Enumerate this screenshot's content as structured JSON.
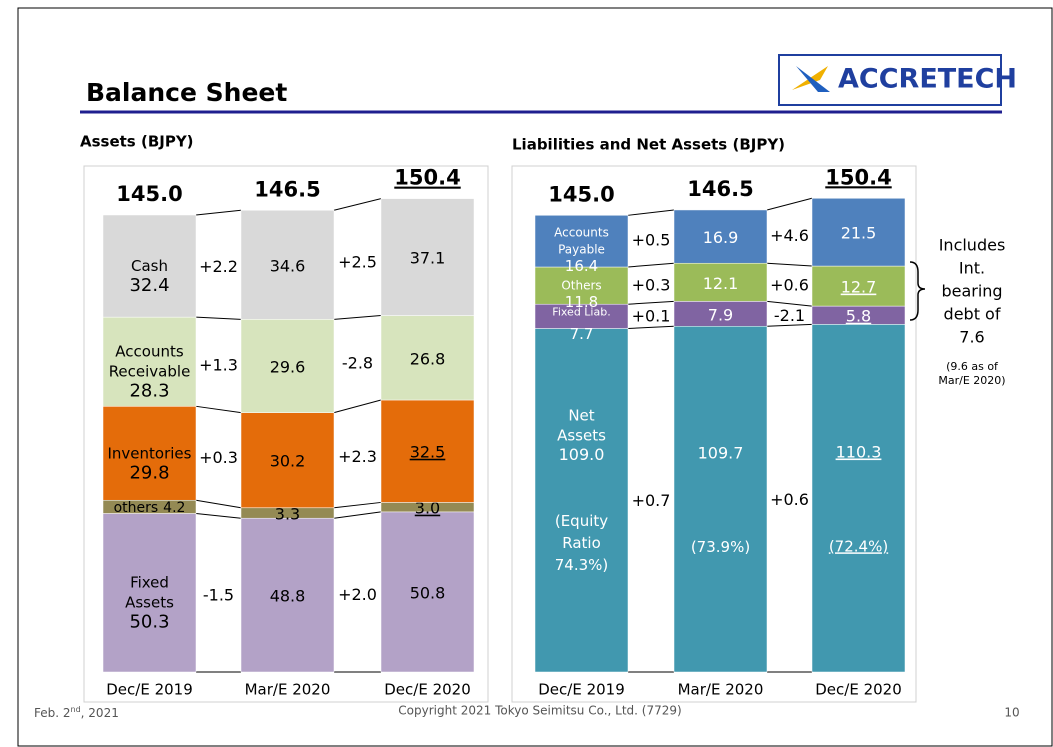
{
  "header": {
    "title": "Balance Sheet",
    "logo": "ACCRETECH"
  },
  "chart_data": [
    {
      "type": "bar",
      "stacked": true,
      "title": "Assets (BJPY)",
      "categories": [
        "Dec/E 2019",
        "Mar/E 2020",
        "Dec/E 2020"
      ],
      "total_labels": [
        "145.0",
        "146.5",
        "150.4"
      ],
      "total_underlined": true,
      "series": [
        {
          "name": "Fixed Assets",
          "color": "#b3a2c7",
          "label_color": "#000000",
          "values": [
            50.3,
            48.8,
            50.8
          ],
          "changes": [
            "-1.5",
            "+2.0"
          ],
          "underlined": false
        },
        {
          "name": "others",
          "color": "#948a54",
          "label_color": "#000000",
          "values": [
            4.2,
            3.3,
            3.0
          ],
          "value_labels": [
            "4.2",
            "3.3",
            "3.0"
          ],
          "underlined": true
        },
        {
          "name": "Inventories",
          "color": "#e46c0a",
          "label_color": "#000000",
          "values": [
            29.8,
            30.2,
            32.5
          ],
          "changes": [
            "+0.3",
            "+2.3"
          ],
          "underlined": true
        },
        {
          "name": "Accounts Receivable",
          "color": "#d7e4bd",
          "label_color": "#000000",
          "values": [
            28.3,
            29.6,
            26.8
          ],
          "changes": [
            "+1.3",
            "-2.8"
          ],
          "underlined": false
        },
        {
          "name": "Cash",
          "color": "#d9d9d9",
          "label_color": "#000000",
          "values": [
            32.4,
            34.6,
            37.1
          ],
          "changes": [
            "+2.2",
            "+2.5"
          ],
          "underlined": false
        }
      ]
    },
    {
      "type": "bar",
      "stacked": true,
      "title": "Liabilities and Net Assets (BJPY)",
      "categories": [
        "Dec/E 2019",
        "Mar/E 2020",
        "Dec/E 2020"
      ],
      "total_labels": [
        "145.0",
        "146.5",
        "150.4"
      ],
      "total_underlined": true,
      "series": [
        {
          "name": "Net Assets",
          "color": "#4198af",
          "label_color": "#ffffff",
          "values": [
            109.0,
            109.7,
            110.3
          ],
          "value_labels": [
            "109.0",
            "109.7",
            "110.3"
          ],
          "ratio_labels": [
            "(Equity Ratio 74.3%)",
            "(73.9%)",
            "(72.4%)"
          ],
          "changes": [
            "+0.7",
            "+0.6"
          ],
          "underlined": true
        },
        {
          "name": "Fixed Liab.",
          "color": "#8064a2",
          "label_color": "#ffffff",
          "values": [
            7.7,
            7.9,
            5.8
          ],
          "changes": [
            "+0.1",
            "-2.1"
          ],
          "underlined": true
        },
        {
          "name": "Others",
          "color": "#9bbb59",
          "label_color": "#ffffff",
          "values": [
            11.8,
            12.1,
            12.7
          ],
          "changes": [
            "+0.3",
            "+0.6"
          ],
          "underlined": true
        },
        {
          "name": "Accounts Payable",
          "color": "#4f81bd",
          "label_color": "#ffffff",
          "values": [
            16.4,
            16.9,
            21.5
          ],
          "changes": [
            "+0.5",
            "+4.6"
          ],
          "underlined": false
        }
      ]
    }
  ],
  "note": {
    "lines": [
      "Includes",
      "Int.",
      "bearing",
      "debt of",
      "7.6"
    ],
    "sub_lines": [
      "(9.6 as of",
      "Mar/E 2020)"
    ]
  },
  "footer": {
    "date_day": "Feb. 2",
    "date_suffix": "nd",
    "date_year": ", 2021",
    "copyright": "Copyright  2021 Tokyo Seimitsu Co., Ltd. (7729)",
    "page": "10"
  }
}
